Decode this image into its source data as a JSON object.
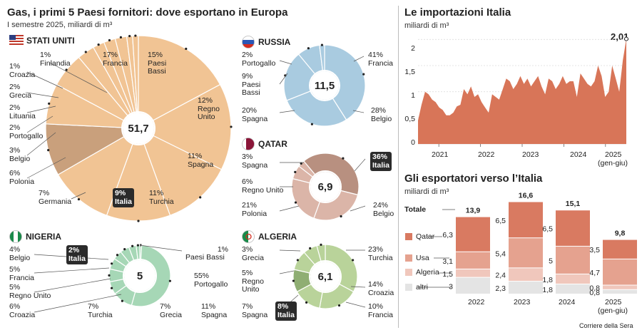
{
  "left": {
    "title": "Gas, i primi 5 Paesi fornitori: dove esportano in Europa",
    "subtitle": "I semestre 2025, miliardi di m³",
    "usa": {
      "name": "STATI UNITI",
      "total": "51,7"
    },
    "russia": {
      "name": "RUSSIA",
      "total": "11,5"
    },
    "qatar": {
      "name": "QATAR",
      "total": "6,9"
    },
    "nigeria": {
      "name": "NIGERIA",
      "total": "5"
    },
    "algeria": {
      "name": "ALGERIA",
      "total": "6,1"
    }
  },
  "imports": {
    "title": "Le importazioni Italia",
    "unit": "miliardi di m³",
    "last_value": "2,01",
    "y_ticks": [
      "2",
      "1,5",
      "1",
      "0,5",
      "0"
    ],
    "x_ticks": [
      "2021",
      "2022",
      "2023",
      "2024",
      "2025"
    ],
    "x_note": "(gen-giu)"
  },
  "exporters": {
    "title": "Gli esportatori verso l’Italia",
    "unit": "miliardi di m³",
    "legend": {
      "total": "Totale",
      "qatar": "Qatar",
      "usa": "Usa",
      "algeria": "Algeria",
      "altri": "altri"
    },
    "years": [
      "2022",
      "2023",
      "2024",
      "2025"
    ],
    "year_note": "(gen-giu)"
  },
  "source": "Corriere della Sera",
  "colors": {
    "usa": "#f1c494",
    "russia": "#a9cbe0",
    "qatar": "#b89080",
    "qatar_light": "#dbb5a8",
    "nigeria": "#a6d7b6",
    "algeria": "#b9d39a",
    "algeria_dark": "#8fae73",
    "area": "#d87558",
    "qatar_bar": "#d97a61",
    "usa_bar": "#e5a28f",
    "algeria_bar": "#f0c7bc",
    "altri_bar": "#e4e4e4",
    "italia_slice": "#c9a07c"
  },
  "chart_data": [
    {
      "type": "pie",
      "title": "STATI UNITI",
      "total": 51.7,
      "slices": [
        {
          "label": "Francia",
          "value": 17,
          "text": "17%"
        },
        {
          "label": "Paesi Bassi",
          "value": 15,
          "text": "15%"
        },
        {
          "label": "Regno Unito",
          "value": 12,
          "text": "12%"
        },
        {
          "label": "Spagna",
          "value": 11,
          "text": "11%"
        },
        {
          "label": "Turchia",
          "value": 11,
          "text": "11%"
        },
        {
          "label": "Italia",
          "value": 9,
          "text": "9%"
        },
        {
          "label": "Germania",
          "value": 7,
          "text": "7%"
        },
        {
          "label": "Polonia",
          "value": 6,
          "text": "6%"
        },
        {
          "label": "Belgio",
          "value": 3,
          "text": "3%"
        },
        {
          "label": "Portogallo",
          "value": 2,
          "text": "2%"
        },
        {
          "label": "Lituania",
          "value": 2,
          "text": "2%"
        },
        {
          "label": "Grecia",
          "value": 2,
          "text": "2%"
        },
        {
          "label": "Croazia",
          "value": 1,
          "text": "1%"
        },
        {
          "label": "Finlandia",
          "value": 1,
          "text": "1%"
        }
      ]
    },
    {
      "type": "pie",
      "title": "RUSSIA",
      "total": 11.5,
      "slices": [
        {
          "label": "Francia",
          "value": 41,
          "text": "41%"
        },
        {
          "label": "Belgio",
          "value": 28,
          "text": "28%"
        },
        {
          "label": "Spagna",
          "value": 20,
          "text": "20%"
        },
        {
          "label": "Paesi Bassi",
          "value": 9,
          "text": "9%"
        },
        {
          "label": "Portogallo",
          "value": 2,
          "text": "2%"
        }
      ]
    },
    {
      "type": "pie",
      "title": "QATAR",
      "total": 6.9,
      "slices": [
        {
          "label": "Italia",
          "value": 36,
          "text": "36%"
        },
        {
          "label": "Belgio",
          "value": 24,
          "text": "24%"
        },
        {
          "label": "Polonia",
          "value": 21,
          "text": "21%"
        },
        {
          "label": "Regno Unito",
          "value": 6,
          "text": "6%"
        },
        {
          "label": "Spagna",
          "value": 3,
          "text": "3%"
        }
      ]
    },
    {
      "type": "pie",
      "title": "NIGERIA",
      "total": 5,
      "slices": [
        {
          "label": "Paesi Bassi",
          "value": 1,
          "text": "1%"
        },
        {
          "label": "Portogallo",
          "value": 55,
          "text": "55%"
        },
        {
          "label": "Spagna",
          "value": 11,
          "text": "11%"
        },
        {
          "label": "Grecia",
          "value": 7,
          "text": "7%"
        },
        {
          "label": "Turchia",
          "value": 7,
          "text": "7%"
        },
        {
          "label": "Croazia",
          "value": 6,
          "text": "6%"
        },
        {
          "label": "Regno Unito",
          "value": 5,
          "text": "5%"
        },
        {
          "label": "Francia",
          "value": 5,
          "text": "5%"
        },
        {
          "label": "Belgio",
          "value": 4,
          "text": "4%"
        },
        {
          "label": "Italia",
          "value": 2,
          "text": "2%"
        }
      ]
    },
    {
      "type": "pie",
      "title": "ALGERIA",
      "total": 6.1,
      "slices": [
        {
          "label": "Turchia",
          "value": 23,
          "text": "23%"
        },
        {
          "label": "Croazia",
          "value": 14,
          "text": "14%"
        },
        {
          "label": "Francia",
          "value": 10,
          "text": "10%"
        },
        {
          "label": "Italia",
          "value": 8,
          "text": "8%"
        },
        {
          "label": "Spagna",
          "value": 7,
          "text": "7%"
        },
        {
          "label": "Regno Unito",
          "value": 5,
          "text": "5%"
        },
        {
          "label": "Grecia",
          "value": 3,
          "text": "3%"
        }
      ]
    },
    {
      "type": "area",
      "title": "Le importazioni Italia",
      "ylabel": "miliardi di m³",
      "ylim": [
        0,
        2.1
      ],
      "x_start": "2020-07",
      "x_end": "2025-06",
      "values": [
        0.45,
        0.75,
        1.0,
        0.95,
        0.85,
        0.8,
        0.7,
        0.65,
        0.55,
        0.55,
        0.6,
        0.72,
        0.75,
        1.05,
        0.95,
        1.1,
        0.9,
        0.95,
        0.8,
        0.7,
        0.6,
        0.95,
        0.9,
        0.85,
        1.05,
        1.25,
        1.2,
        1.05,
        1.15,
        1.3,
        1.15,
        1.25,
        1.1,
        1.2,
        1.3,
        1.1,
        0.95,
        1.25,
        1.2,
        1.05,
        1.15,
        1.3,
        1.15,
        1.2,
        1.2,
        0.9,
        1.35,
        1.25,
        1.15,
        1.1,
        1.2,
        1.5,
        1.3,
        0.9,
        1.0,
        1.5,
        1.25,
        1.0,
        1.6,
        2.01
      ],
      "last_label": "2,01"
    },
    {
      "type": "bar",
      "stacked": true,
      "title": "Gli esportatori verso l’Italia",
      "categories": [
        "2022",
        "2023",
        "2024",
        "2025"
      ],
      "totals": [
        13.9,
        16.6,
        15.1,
        9.8
      ],
      "total_labels": [
        "13,9",
        "16,6",
        "15,1",
        "9,8"
      ],
      "series": [
        {
          "name": "altri",
          "values": [
            3,
            2.3,
            1.8,
            0.8
          ],
          "labels": [
            "3",
            "2,3",
            "1,8",
            "0,8"
          ]
        },
        {
          "name": "Algeria",
          "values": [
            1.5,
            2.4,
            1.8,
            0.8
          ],
          "labels": [
            "1,5",
            "2,4",
            "1,8",
            "0,8"
          ]
        },
        {
          "name": "Usa",
          "values": [
            3.1,
            5.4,
            5,
            4.7
          ],
          "labels": [
            "3,1",
            "5,4",
            "5",
            "4,7"
          ]
        },
        {
          "name": "Qatar",
          "values": [
            6.3,
            6.5,
            6.5,
            3.5
          ],
          "labels": [
            "6,3",
            "6,5",
            "6,5",
            "3,5"
          ]
        }
      ]
    }
  ]
}
